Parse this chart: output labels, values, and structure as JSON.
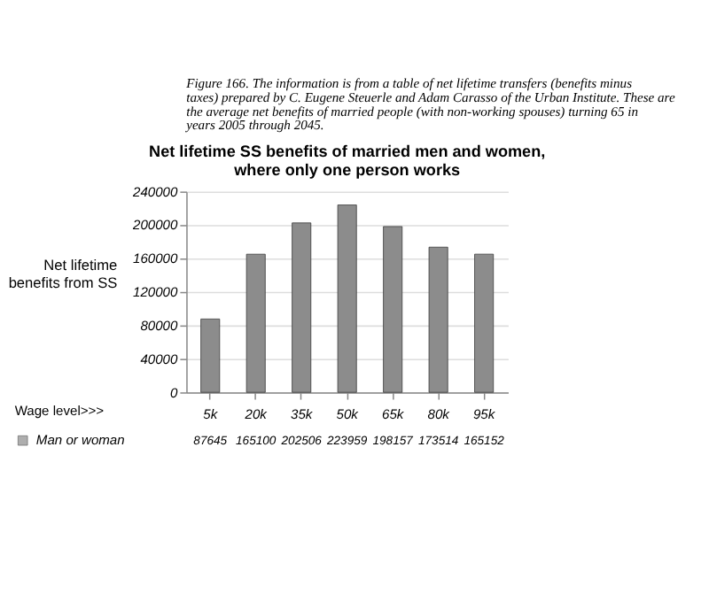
{
  "chart_data": {
    "type": "bar",
    "title": "Net lifetime SS benefits of married men and women, where only one person works",
    "annotations": [
      "Figure 166. The information is from a table of net lifetime transfers (benefits minus taxes) prepared by C. Eugene Steuerle and Adam Carasso of the Urban Institute. These are the average net benefits of married people (with non-working spouses) turning 65 in years 2005 through 2045."
    ],
    "xlabel": "Wage level>>>",
    "ylabel": "Net lifetime benefits from SS",
    "categories": [
      "5k",
      "20k",
      "35k",
      "50k",
      "65k",
      "80k",
      "95k"
    ],
    "series": [
      {
        "name": "Man or woman",
        "color": "#8c8c8c",
        "values": [
          87645,
          165100,
          202506,
          223959,
          198157,
          173514,
          165152
        ]
      }
    ],
    "ylim": [
      0,
      240000
    ],
    "yticks": [
      0,
      40000,
      80000,
      120000,
      160000,
      200000,
      240000
    ],
    "grid": "y",
    "legend": "bottom",
    "data_labels": true
  }
}
